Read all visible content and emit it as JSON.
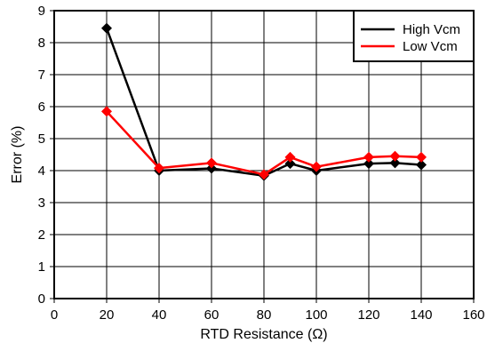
{
  "chart_data": {
    "type": "line",
    "xlabel": "RTD Resistance (Ω)",
    "ylabel": "Error (%)",
    "xlim": [
      0,
      160
    ],
    "ylim": [
      0,
      9
    ],
    "xticks": [
      "0",
      "20",
      "40",
      "60",
      "80",
      "100",
      "120",
      "140",
      "160"
    ],
    "yticks": [
      "0",
      "1",
      "2",
      "3",
      "4",
      "5",
      "6",
      "7",
      "8",
      "9"
    ],
    "grid": true,
    "legend_position": "top-right",
    "x": [
      20,
      40,
      60,
      80,
      90,
      100,
      120,
      130,
      140
    ],
    "series": [
      {
        "name": "High Vcm",
        "color": "#000000",
        "marker": "diamond",
        "values": [
          8.45,
          4.0,
          4.07,
          3.84,
          4.22,
          4.0,
          4.22,
          4.24,
          4.18
        ]
      },
      {
        "name": "Low Vcm",
        "color": "#ff0000",
        "marker": "diamond",
        "values": [
          5.85,
          4.08,
          4.24,
          3.88,
          4.42,
          4.12,
          4.42,
          4.45,
          4.42
        ]
      }
    ]
  }
}
